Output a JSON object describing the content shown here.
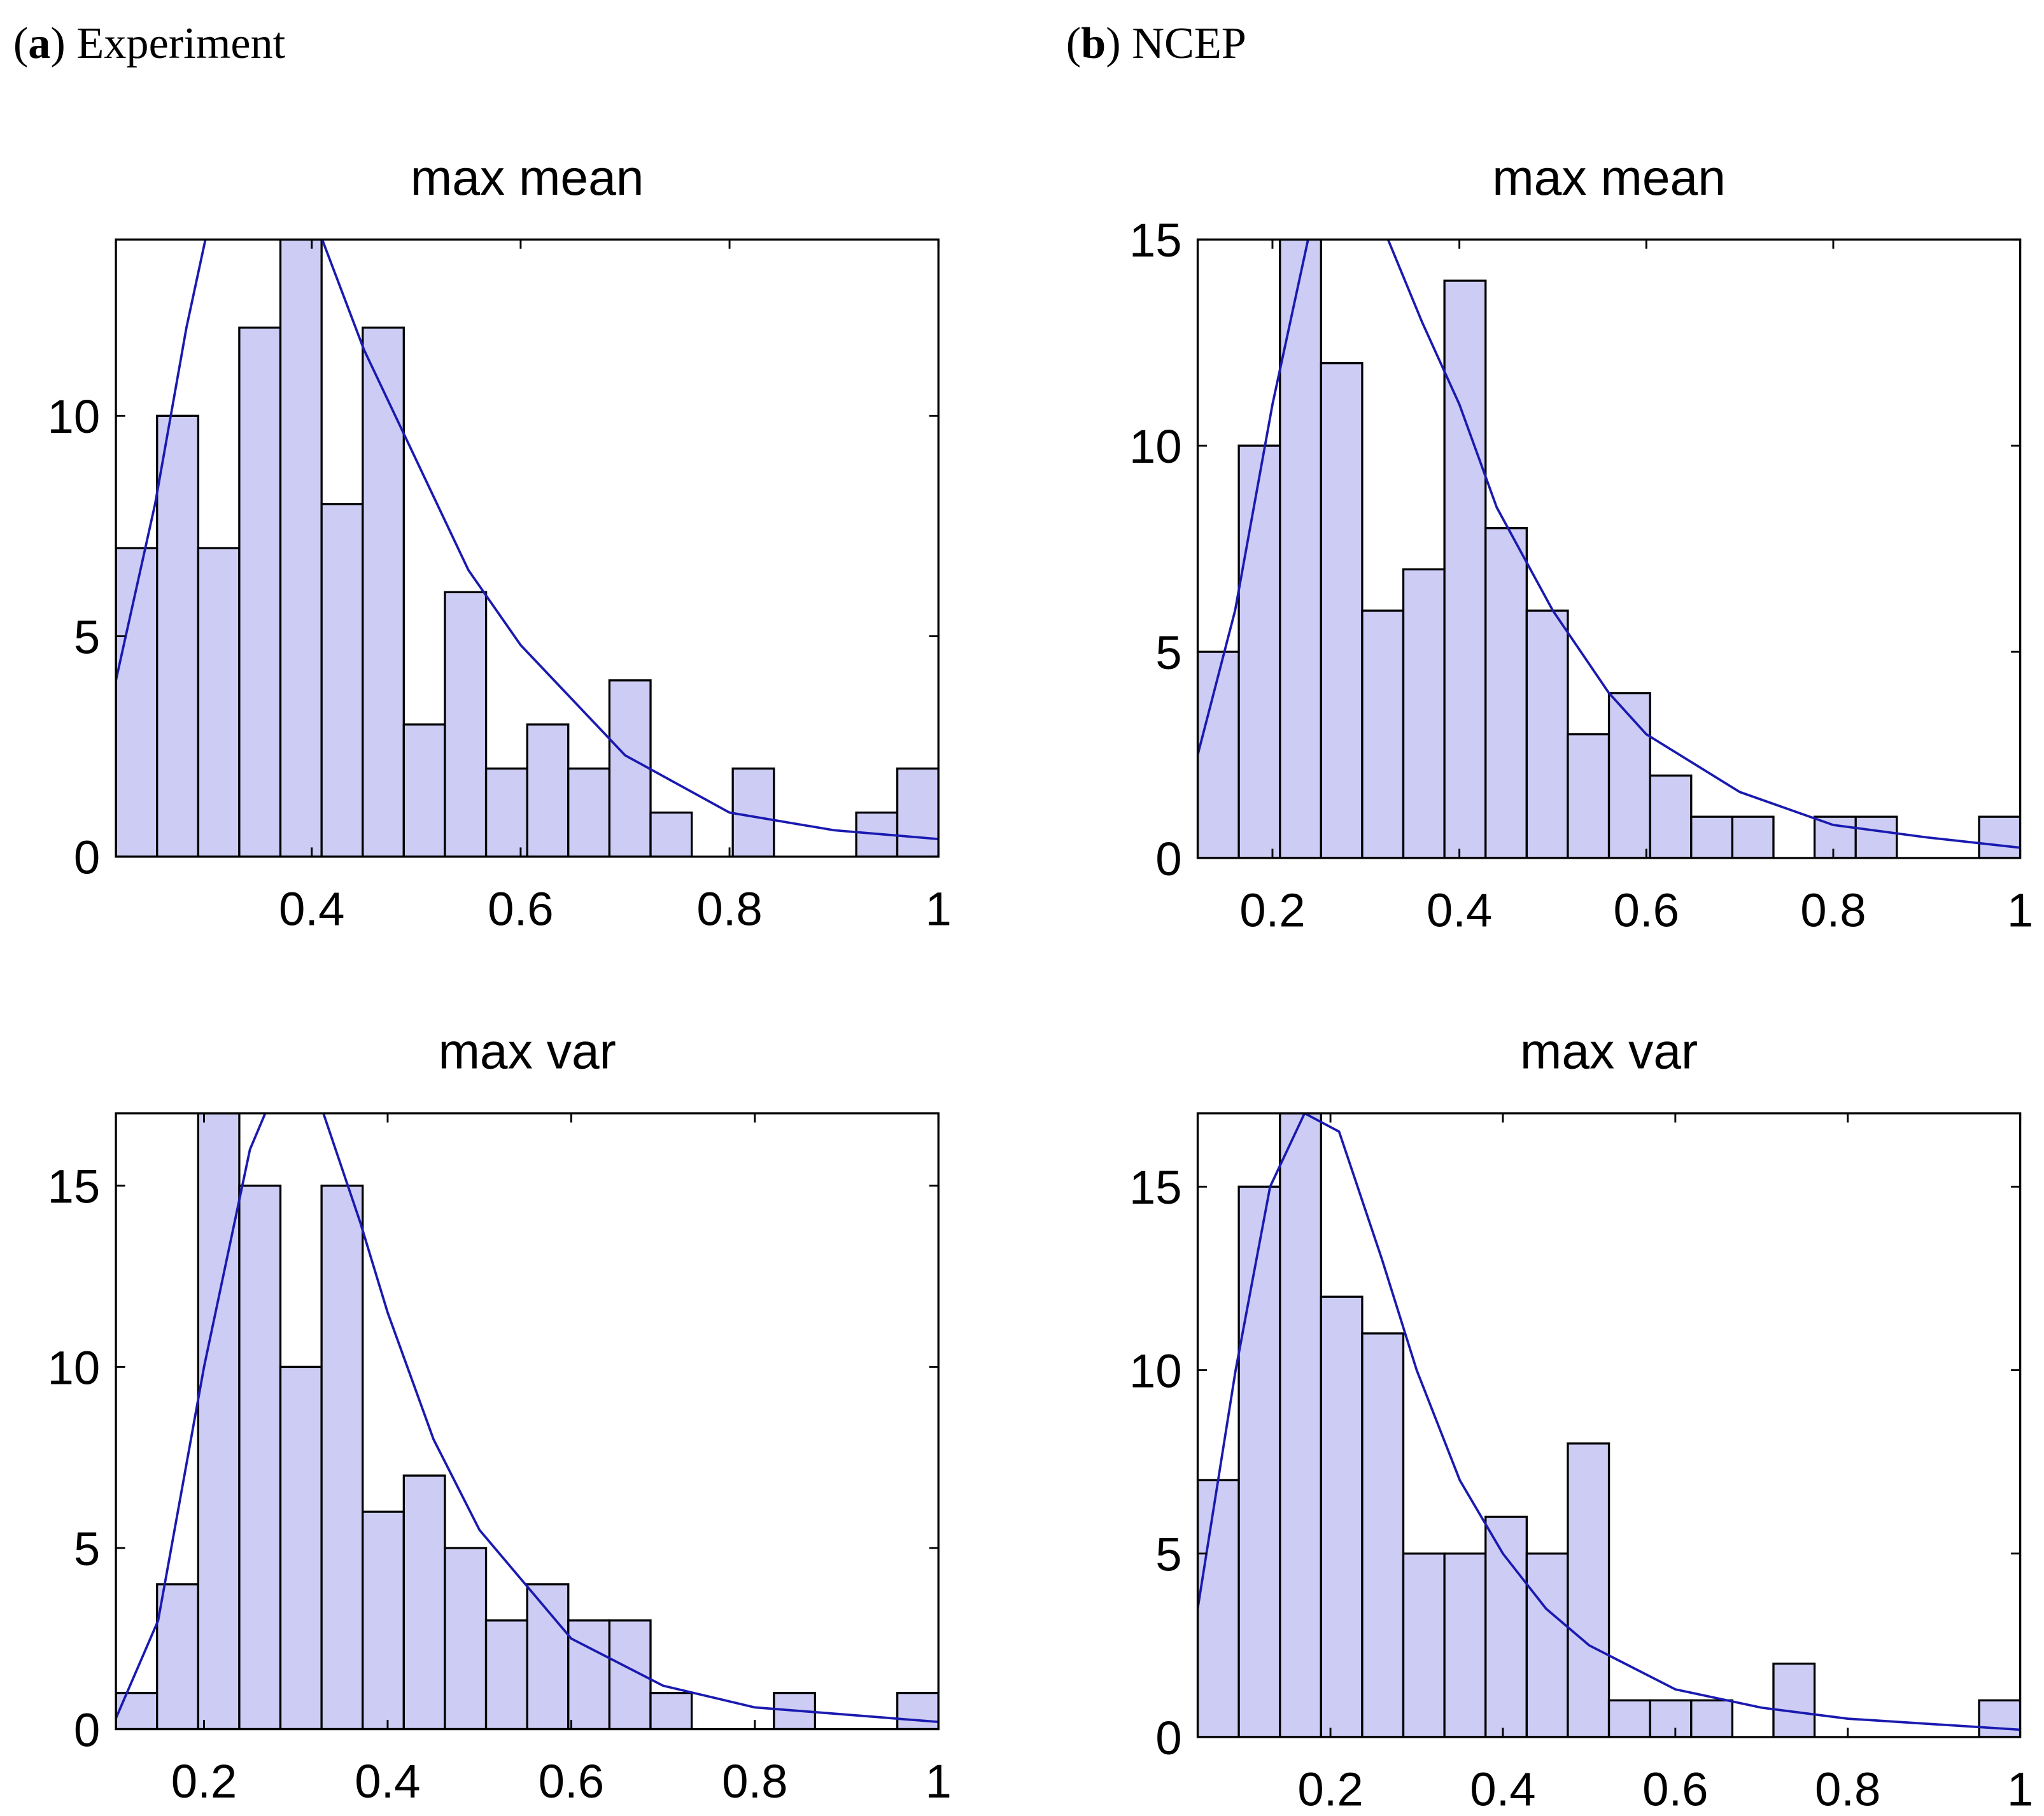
{
  "panel_labels": [
    [
      "(",
      "a",
      ") Experiment"
    ],
    [
      "(",
      "b",
      ") NCEP"
    ]
  ],
  "chart_data": [
    {
      "type": "histogram",
      "title": "max mean",
      "color": "#ccccf5",
      "fit_color": "#1a1ab0",
      "bins": [
        0.2125,
        0.2519,
        0.2913,
        0.3306,
        0.37,
        0.4094,
        0.4488,
        0.4881,
        0.5275,
        0.5669,
        0.6063,
        0.6456,
        0.685,
        0.7244,
        0.7638,
        0.8031,
        0.8425,
        0.8819,
        0.9213,
        0.9606,
        1
      ],
      "counts": [
        7,
        10,
        7,
        12,
        14,
        8,
        12,
        3,
        6,
        2,
        3,
        2,
        4,
        1,
        0,
        2,
        0,
        0,
        1,
        2
      ],
      "fit_x": [
        0.2125,
        0.25,
        0.28,
        0.3,
        0.35,
        0.41,
        0.45,
        0.49,
        0.55,
        0.6,
        0.7,
        0.8,
        0.9,
        1
      ],
      "fit_y": [
        4,
        8,
        12,
        14.2,
        18,
        14,
        11.5,
        9.5,
        6.5,
        4.8,
        2.3,
        1.0,
        0.6,
        0.4
      ],
      "xlim": [
        0.2125,
        1
      ],
      "xticks": [
        0.4,
        0.6,
        0.8,
        1
      ],
      "ylim": [
        0,
        14
      ],
      "yticks": [
        0,
        5,
        10
      ]
    },
    {
      "type": "histogram",
      "title": "max mean",
      "color": "#ccccf5",
      "fit_color": "#1a1ab0",
      "bins": [
        0.12,
        0.164,
        0.208,
        0.252,
        0.296,
        0.34,
        0.384,
        0.428,
        0.472,
        0.516,
        0.56,
        0.604,
        0.648,
        0.692,
        0.736,
        0.78,
        0.824,
        0.868,
        0.912,
        0.956,
        1
      ],
      "counts": [
        5,
        10,
        15,
        12,
        6,
        7,
        14,
        8,
        6,
        3,
        4,
        2,
        1,
        1,
        0,
        1,
        1,
        0,
        0,
        1
      ],
      "fit_x": [
        0.12,
        0.16,
        0.2,
        0.24,
        0.28,
        0.32,
        0.36,
        0.4,
        0.44,
        0.5,
        0.56,
        0.6,
        0.7,
        0.8,
        0.9,
        1
      ],
      "fit_y": [
        2.5,
        6,
        11,
        15.2,
        17,
        15.2,
        13,
        11,
        8.5,
        6,
        4,
        3,
        1.6,
        0.8,
        0.5,
        0.25
      ],
      "xlim": [
        0.12,
        1
      ],
      "xticks": [
        0.2,
        0.4,
        0.6,
        0.8,
        1
      ],
      "ylim": [
        0,
        15
      ],
      "yticks": [
        0,
        5,
        10,
        15
      ]
    },
    {
      "type": "histogram",
      "title": "max var",
      "color": "#ccccf5",
      "fit_color": "#1a1ab0",
      "bins": [
        0.104,
        0.1488,
        0.1936,
        0.2384,
        0.2832,
        0.328,
        0.3728,
        0.4176,
        0.4624,
        0.5072,
        0.552,
        0.5968,
        0.6416,
        0.6864,
        0.7312,
        0.776,
        0.8208,
        0.8656,
        0.9104,
        0.9552,
        1
      ],
      "counts": [
        1,
        4,
        17,
        15,
        10,
        15,
        6,
        7,
        5,
        3,
        4,
        3,
        3,
        1,
        0,
        0,
        1,
        0,
        0,
        1
      ],
      "fit_x": [
        0.104,
        0.15,
        0.2,
        0.25,
        0.27,
        0.3,
        0.33,
        0.37,
        0.4,
        0.45,
        0.5,
        0.6,
        0.7,
        0.8,
        1
      ],
      "fit_y": [
        0.3,
        3,
        10,
        16,
        17.2,
        18,
        17,
        14,
        11.5,
        8,
        5.5,
        2.5,
        1.2,
        0.6,
        0.2
      ],
      "xlim": [
        0.104,
        1
      ],
      "xticks": [
        0.2,
        0.4,
        0.6,
        0.8,
        1
      ],
      "ylim": [
        0,
        17
      ],
      "yticks": [
        0,
        5,
        10,
        15
      ]
    },
    {
      "type": "histogram",
      "title": "max var",
      "color": "#ccccf5",
      "fit_color": "#1a1ab0",
      "bins": [
        0.046,
        0.0937,
        0.1414,
        0.1891,
        0.2368,
        0.2845,
        0.3322,
        0.3799,
        0.4276,
        0.4753,
        0.523,
        0.5707,
        0.6184,
        0.6661,
        0.7138,
        0.7615,
        0.8092,
        0.8569,
        0.9046,
        0.9523,
        1
      ],
      "counts": [
        7,
        15,
        17,
        12,
        11,
        5,
        5,
        6,
        5,
        8,
        1,
        1,
        1,
        0,
        2,
        0,
        0,
        0,
        0,
        1
      ],
      "fit_x": [
        0.046,
        0.09,
        0.13,
        0.17,
        0.21,
        0.26,
        0.3,
        0.35,
        0.4,
        0.45,
        0.5,
        0.6,
        0.7,
        0.8,
        1
      ],
      "fit_y": [
        3.5,
        10,
        15,
        17,
        16.5,
        13,
        10,
        7,
        5,
        3.5,
        2.5,
        1.3,
        0.8,
        0.5,
        0.2
      ],
      "xlim": [
        0.046,
        1
      ],
      "xticks": [
        0.2,
        0.4,
        0.6,
        0.8,
        1
      ],
      "ylim": [
        0,
        17
      ],
      "yticks": [
        0,
        5,
        10,
        15
      ]
    }
  ]
}
